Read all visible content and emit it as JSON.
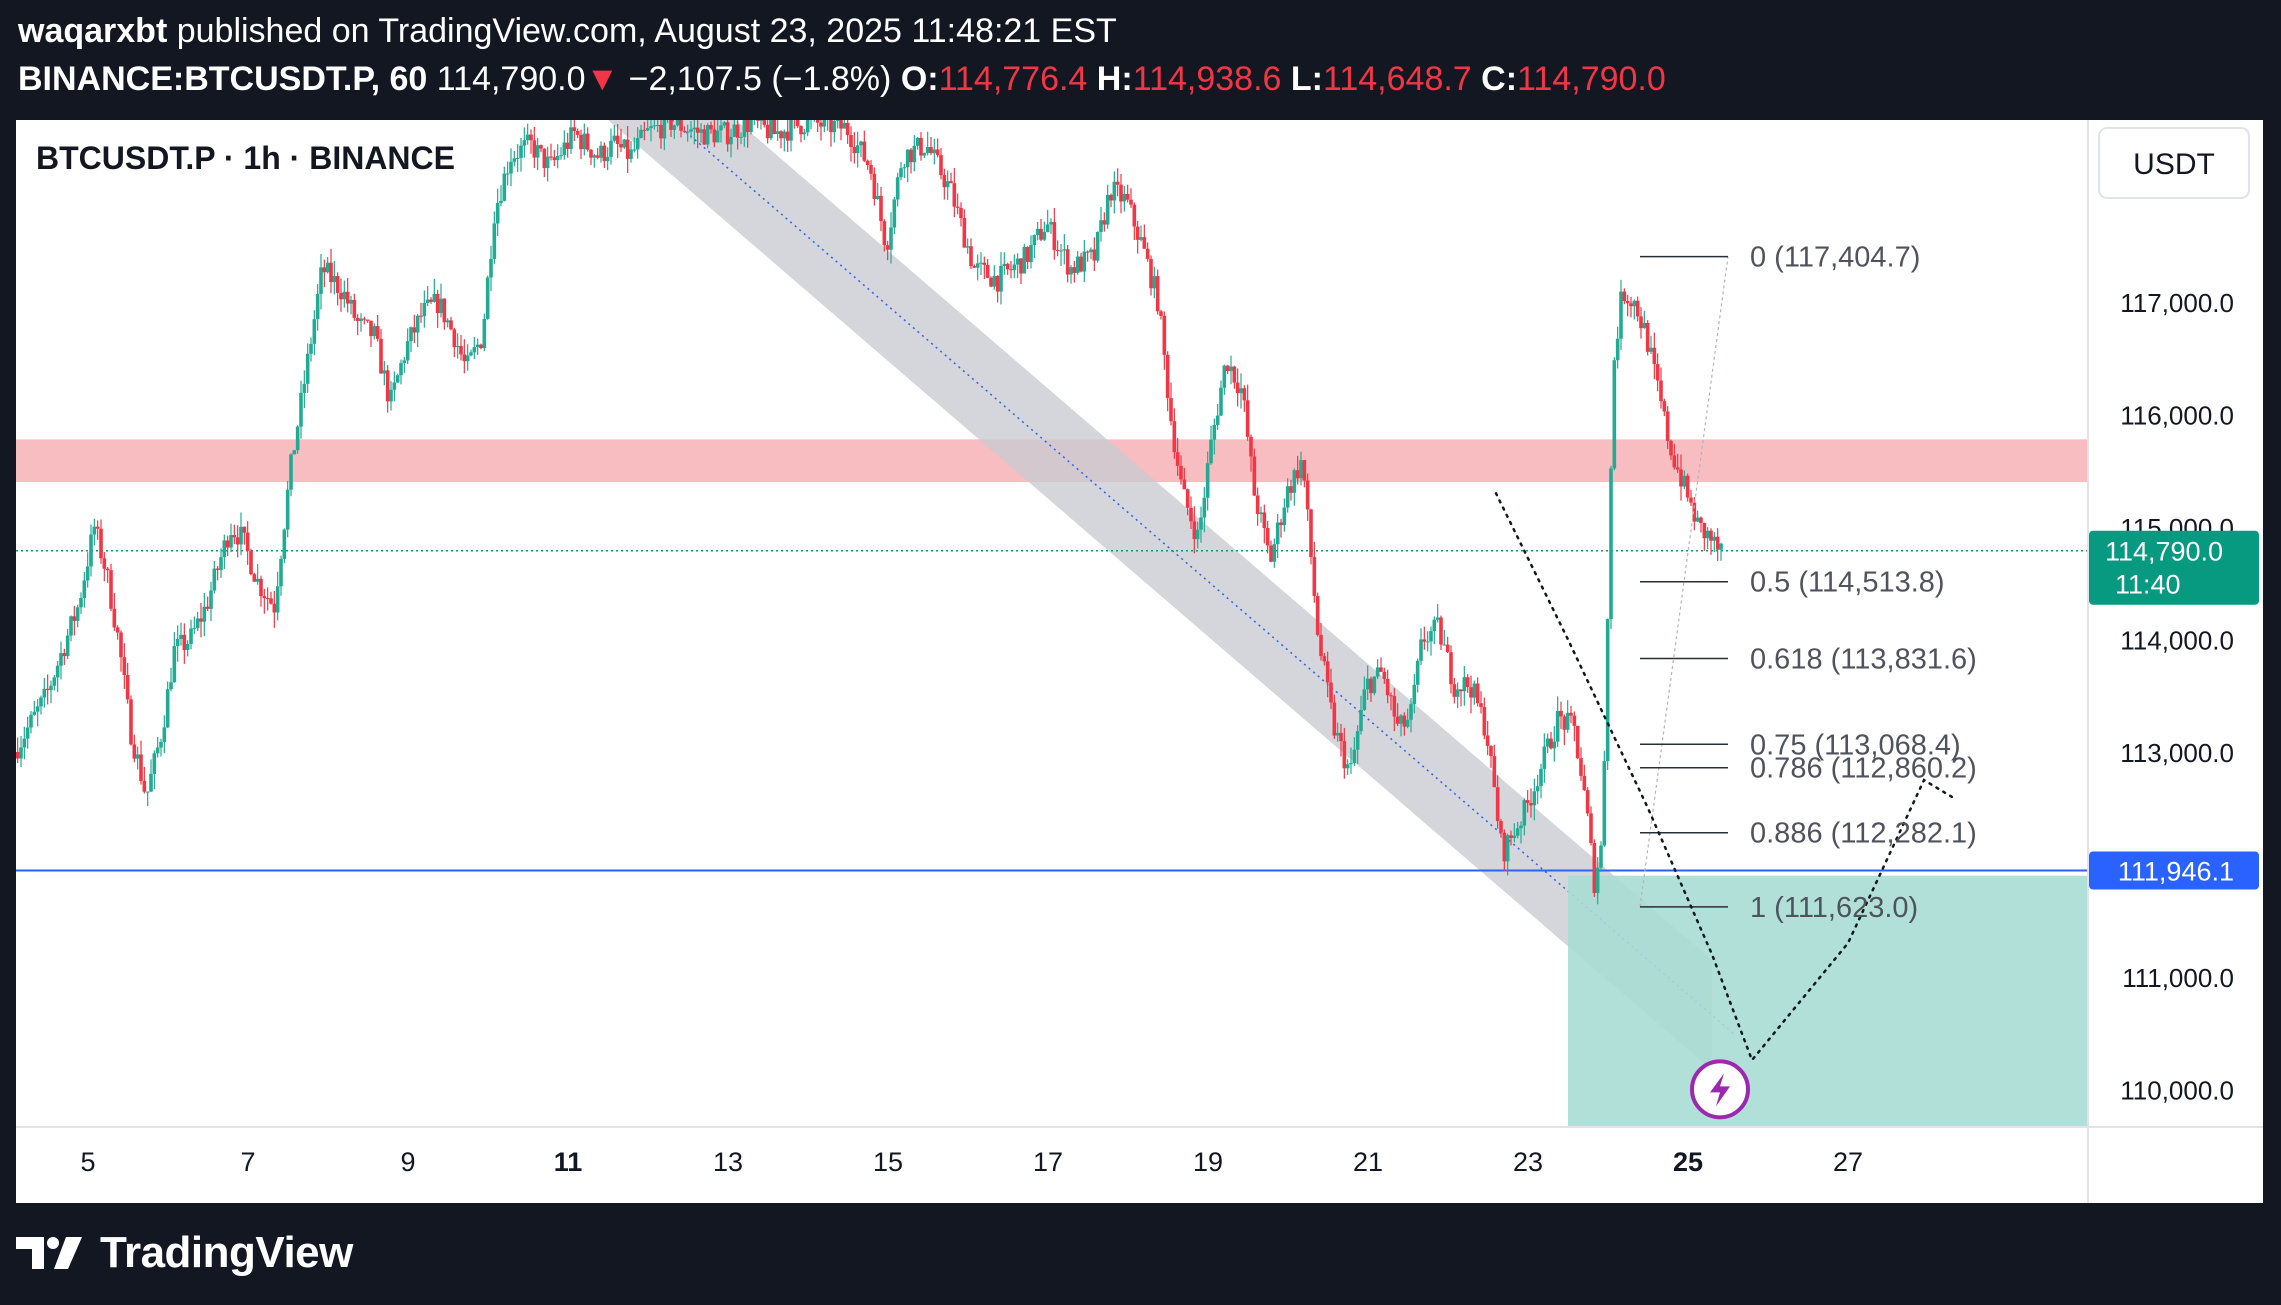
{
  "header": {
    "publisher": "waqarxbt",
    "published_text": "published on TradingView.com, August 23, 2025 11:48:21 EST",
    "symbol": "BINANCE:BTCUSDT.P, 60",
    "last_price": "114,790.0",
    "change_arrow": "▼",
    "change": "−2,107.5 (−1.8%)",
    "o_label": "O:",
    "o_value": "114,776.4",
    "h_label": "H:",
    "h_value": "114,938.6",
    "l_label": "L:",
    "l_value": "114,648.7",
    "c_label": "C:",
    "c_value": "114,790.0"
  },
  "footer": {
    "brand": "TradingView"
  },
  "colors": {
    "up": "#22ab94",
    "down": "#f23645",
    "resistance_zone": "#f7b9bd",
    "channel": "#c9cbd1",
    "target_zone": "#a8ddd4",
    "hline": "#2962ff",
    "price_tag": "#089981"
  },
  "chart_data": {
    "type": "candlestick",
    "title": "BTCUSDT.P · 1h · BINANCE",
    "currency": "USDT",
    "ylim": [
      109665,
      118620
    ],
    "xlim": [
      4.1,
      30.0
    ],
    "x_ticks": [
      {
        "day": 5,
        "label": "5",
        "bold": false
      },
      {
        "day": 7,
        "label": "7",
        "bold": false
      },
      {
        "day": 9,
        "label": "9",
        "bold": false
      },
      {
        "day": 11,
        "label": "11",
        "bold": true
      },
      {
        "day": 13,
        "label": "13",
        "bold": false
      },
      {
        "day": 15,
        "label": "15",
        "bold": false
      },
      {
        "day": 17,
        "label": "17",
        "bold": false
      },
      {
        "day": 19,
        "label": "19",
        "bold": false
      },
      {
        "day": 21,
        "label": "21",
        "bold": false
      },
      {
        "day": 23,
        "label": "23",
        "bold": false
      },
      {
        "day": 25,
        "label": "25",
        "bold": true
      },
      {
        "day": 27,
        "label": "27",
        "bold": false
      }
    ],
    "y_ticks": [
      {
        "value": 117000,
        "label": "117,000.0"
      },
      {
        "value": 116000,
        "label": "116,000.0"
      },
      {
        "value": 115000,
        "label": "115,000.0"
      },
      {
        "value": 114000,
        "label": "114,000.0"
      },
      {
        "value": 113000,
        "label": "113,000.0"
      },
      {
        "value": 111000,
        "label": "111,000.0"
      },
      {
        "value": 110000,
        "label": "110,000.0"
      }
    ],
    "price_path": [
      [
        4.1,
        113000
      ],
      [
        4.5,
        113500
      ],
      [
        4.9,
        114300
      ],
      [
        5.1,
        115000
      ],
      [
        5.25,
        114600
      ],
      [
        5.4,
        114000
      ],
      [
        5.55,
        113200
      ],
      [
        5.75,
        112600
      ],
      [
        5.95,
        113200
      ],
      [
        6.1,
        113900
      ],
      [
        6.3,
        114000
      ],
      [
        6.5,
        114300
      ],
      [
        6.8,
        115000
      ],
      [
        6.95,
        114900
      ],
      [
        7.15,
        114500
      ],
      [
        7.35,
        114300
      ],
      [
        7.55,
        115500
      ],
      [
        7.75,
        116400
      ],
      [
        7.95,
        117300
      ],
      [
        8.2,
        117100
      ],
      [
        8.4,
        116800
      ],
      [
        8.6,
        116700
      ],
      [
        8.8,
        116100
      ],
      [
        9.0,
        116600
      ],
      [
        9.2,
        116900
      ],
      [
        9.4,
        117000
      ],
      [
        9.6,
        116700
      ],
      [
        9.75,
        116400
      ],
      [
        9.95,
        116700
      ],
      [
        10.1,
        117800
      ],
      [
        10.3,
        118300
      ],
      [
        10.55,
        118400
      ],
      [
        10.8,
        118200
      ],
      [
        11.1,
        118500
      ],
      [
        11.4,
        118300
      ],
      [
        11.6,
        118400
      ],
      [
        11.8,
        118300
      ],
      [
        12.0,
        118500
      ],
      [
        12.3,
        118600
      ],
      [
        12.7,
        118500
      ],
      [
        13.0,
        118500
      ],
      [
        13.3,
        118600
      ],
      [
        13.6,
        118500
      ],
      [
        14.0,
        118600
      ],
      [
        14.5,
        118550
      ],
      [
        14.8,
        118200
      ],
      [
        15.0,
        117500
      ],
      [
        15.2,
        118300
      ],
      [
        15.5,
        118400
      ],
      [
        15.8,
        118000
      ],
      [
        16.1,
        117300
      ],
      [
        16.4,
        117200
      ],
      [
        16.75,
        117400
      ],
      [
        17.0,
        117700
      ],
      [
        17.3,
        117300
      ],
      [
        17.6,
        117400
      ],
      [
        17.8,
        118000
      ],
      [
        18.0,
        117900
      ],
      [
        18.2,
        117500
      ],
      [
        18.4,
        117000
      ],
      [
        18.55,
        116000
      ],
      [
        18.7,
        115300
      ],
      [
        18.9,
        114900
      ],
      [
        19.05,
        115700
      ],
      [
        19.25,
        116500
      ],
      [
        19.45,
        116200
      ],
      [
        19.6,
        115300
      ],
      [
        19.8,
        114700
      ],
      [
        20.0,
        115300
      ],
      [
        20.2,
        115600
      ],
      [
        20.4,
        114000
      ],
      [
        20.6,
        113200
      ],
      [
        20.8,
        112800
      ],
      [
        21.0,
        113600
      ],
      [
        21.2,
        113700
      ],
      [
        21.4,
        113200
      ],
      [
        21.55,
        113300
      ],
      [
        21.7,
        114000
      ],
      [
        21.9,
        114100
      ],
      [
        22.1,
        113600
      ],
      [
        22.3,
        113600
      ],
      [
        22.5,
        113200
      ],
      [
        22.7,
        112100
      ],
      [
        22.85,
        112300
      ],
      [
        23.0,
        112500
      ],
      [
        23.2,
        112900
      ],
      [
        23.4,
        113300
      ],
      [
        23.6,
        113200
      ],
      [
        23.75,
        112500
      ],
      [
        23.85,
        111850
      ],
      [
        23.95,
        112200
      ],
      [
        24.05,
        115300
      ],
      [
        24.1,
        116500
      ],
      [
        24.2,
        117100
      ],
      [
        24.35,
        117000
      ],
      [
        24.5,
        116700
      ],
      [
        24.65,
        116200
      ],
      [
        24.8,
        115700
      ],
      [
        24.95,
        115400
      ],
      [
        25.15,
        115000
      ],
      [
        25.3,
        114900
      ],
      [
        25.4,
        114790
      ]
    ],
    "resistance_zone": {
      "from": 115400,
      "to": 115780
    },
    "support_line": {
      "price": 111946.1,
      "label": "111,946.1"
    },
    "last_price": {
      "price": 114790.0,
      "label": "114,790.0",
      "countdown": "11:40"
    },
    "fib_retracement": {
      "levels": [
        {
          "ratio": "0",
          "price": 117404.7,
          "label": "0 (117,404.7)"
        },
        {
          "ratio": "0.5",
          "price": 114513.8,
          "label": "0.5 (114,513.8)"
        },
        {
          "ratio": "0.618",
          "price": 113831.6,
          "label": "0.618 (113,831.6)"
        },
        {
          "ratio": "0.75",
          "price": 113068.4,
          "label": "0.75 (113,068.4)"
        },
        {
          "ratio": "0.786",
          "price": 112860.2,
          "label": "0.786 (112,860.2)"
        },
        {
          "ratio": "0.886",
          "price": 112282.1,
          "label": "0.886 (112,282.1)"
        },
        {
          "ratio": "1",
          "price": 111623.0,
          "label": "1 (111,623.0)"
        }
      ],
      "from_day": 24.4,
      "to_day": 25.5
    },
    "descending_channel": {
      "upper": [
        [
          13.1,
          118620
        ],
        [
          25.3,
          111150
        ]
      ],
      "lower": [
        [
          11.5,
          118620
        ],
        [
          22.75,
          111900
        ]
      ],
      "end_day": 25.3
    },
    "target_zone": {
      "from_day": 23.5,
      "to_day": 30.0,
      "top": 111900,
      "bottom": 109665
    },
    "projection_path": [
      [
        22.6,
        115300
      ],
      [
        23.5,
        114000
      ],
      [
        24.5,
        112500
      ],
      [
        25.3,
        111200
      ],
      [
        25.8,
        110260
      ],
      [
        27.0,
        111300
      ],
      [
        27.95,
        112750
      ],
      [
        28.3,
        112600
      ]
    ],
    "grid": false,
    "legend": "none"
  }
}
